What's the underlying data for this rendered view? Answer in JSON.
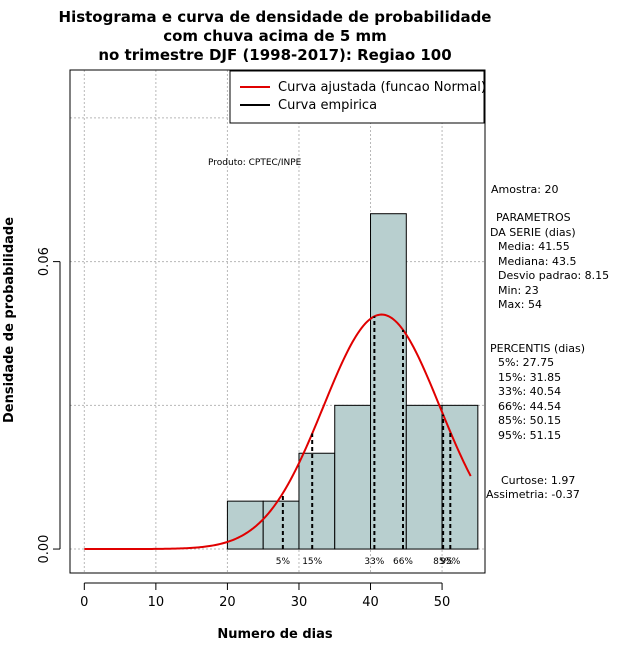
{
  "chart_data": {
    "type": "bar",
    "title_lines": [
      "Histograma e curva de densidade de probabilidade",
      "com chuva acima de 5 mm",
      "no trimestre DJF (1998-2017): Regiao 100"
    ],
    "xlabel": "Numero de dias",
    "ylabel": "Densidade de probabilidade",
    "xlim": [
      -2,
      56
    ],
    "ylim": [
      -0.005,
      0.1
    ],
    "x_ticks": [
      0,
      10,
      20,
      30,
      40,
      50
    ],
    "y_ticks": [
      0.0,
      0.06
    ],
    "y_tick_labels": [
      "0.00",
      "0.06"
    ],
    "grid": true,
    "legend_position": "top-right",
    "histogram": {
      "color": "#b8cfcf",
      "bins": [
        {
          "x0": 20,
          "x1": 25,
          "density": 0.01
        },
        {
          "x0": 25,
          "x1": 30,
          "density": 0.01
        },
        {
          "x0": 30,
          "x1": 35,
          "density": 0.02
        },
        {
          "x0": 35,
          "x1": 40,
          "density": 0.03
        },
        {
          "x0": 40,
          "x1": 45,
          "density": 0.07
        },
        {
          "x0": 45,
          "x1": 50,
          "density": 0.03
        },
        {
          "x0": 50,
          "x1": 55,
          "density": 0.03
        }
      ]
    },
    "series": [
      {
        "name": "Curva ajustada (funcao Normal)",
        "color": "#e00000",
        "distribution": "normal",
        "mean": 41.55,
        "sd": 8.15,
        "x_range": [
          0,
          54
        ]
      },
      {
        "name": "Curva empirica",
        "color": "#000000"
      }
    ],
    "percentile_lines": [
      {
        "label": "5%",
        "x": 27.75
      },
      {
        "label": "15%",
        "x": 31.85
      },
      {
        "label": "33%",
        "x": 40.54
      },
      {
        "label": "66%",
        "x": 44.54
      },
      {
        "label": "85%",
        "x": 50.15
      },
      {
        "label": "95%",
        "x": 51.15
      }
    ],
    "annotations": {
      "produto": "Produto: CPTEC/INPE",
      "amostra": "Amostra: 20",
      "parametros_title_1": "PARAMETROS",
      "parametros_title_2": "DA SERIE (dias)",
      "parametros": [
        "Media: 41.55",
        "Mediana: 43.5",
        "Desvio padrao: 8.15",
        "Min: 23",
        "Max: 54"
      ],
      "percentis_title": "PERCENTIS (dias)",
      "percentis": [
        "5%: 27.75",
        "15%: 31.85",
        "33%: 40.54",
        "66%: 44.54",
        "85%: 50.15",
        "95%: 51.15"
      ],
      "curtose": "Curtose: 1.97",
      "assimetria": "Assimetria: -0.37"
    }
  }
}
